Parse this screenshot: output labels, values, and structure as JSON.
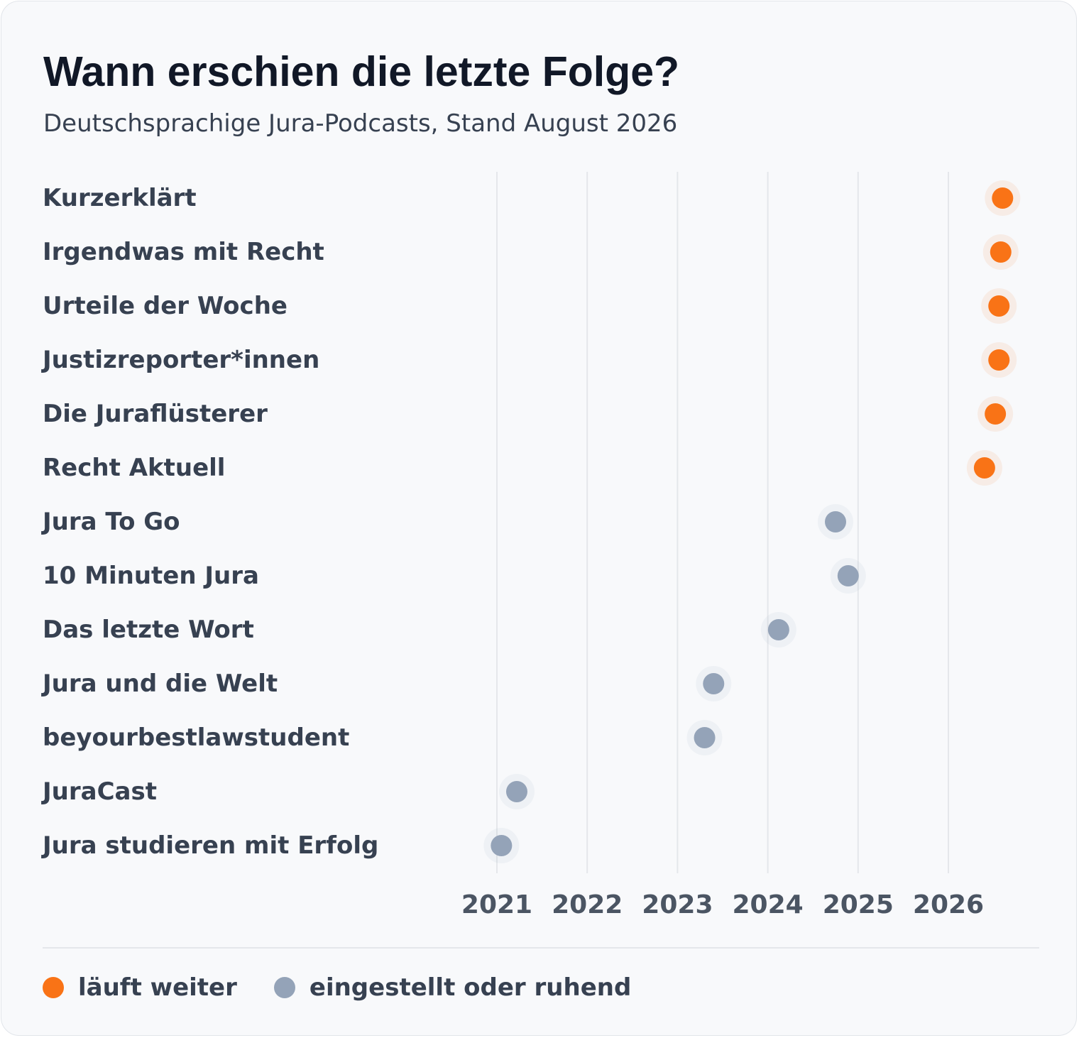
{
  "header": {
    "title": "Wann erschien die letzte Folge?",
    "subtitle": "Deutschsprachige Jura-Podcasts, Stand August 2026"
  },
  "colors": {
    "active": "#f97316",
    "inactive": "#94a3b8",
    "gridline": "#e5e7eb",
    "background": "#f8f9fb"
  },
  "chart_data": {
    "type": "scatter",
    "title": "Wann erschien die letzte Folge?",
    "subtitle": "Deutschsprachige Jura-Podcasts, Stand August 2026",
    "xlabel": "",
    "ylabel": "",
    "xlim": [
      2021.0,
      2026.0
    ],
    "x_ticks": [
      "2021",
      "2022",
      "2023",
      "2024",
      "2025",
      "2026"
    ],
    "grid": true,
    "legend_position": "bottom-left",
    "series": [
      {
        "name": "läuft weiter",
        "color": "#f97316"
      },
      {
        "name": "eingestellt oder ruhend",
        "color": "#94a3b8"
      }
    ],
    "points": [
      {
        "label": "Kurzerklärt",
        "x": 2026.6,
        "series": "läuft weiter"
      },
      {
        "label": "Irgendwas mit Recht",
        "x": 2026.58,
        "series": "läuft weiter"
      },
      {
        "label": "Urteile der Woche",
        "x": 2026.56,
        "series": "läuft weiter"
      },
      {
        "label": "Justizreporter*innen",
        "x": 2026.56,
        "series": "läuft weiter"
      },
      {
        "label": "Die Juraflüsterer",
        "x": 2026.52,
        "series": "läuft weiter"
      },
      {
        "label": "Recht Aktuell",
        "x": 2026.4,
        "series": "läuft weiter"
      },
      {
        "label": "Jura To Go",
        "x": 2024.75,
        "series": "eingestellt oder ruhend"
      },
      {
        "label": "10 Minuten Jura",
        "x": 2024.89,
        "series": "eingestellt oder ruhend"
      },
      {
        "label": "Das letzte Wort",
        "x": 2024.12,
        "series": "eingestellt oder ruhend"
      },
      {
        "label": "Jura und die Welt",
        "x": 2023.4,
        "series": "eingestellt oder ruhend"
      },
      {
        "label": "beyourbestlawstudent",
        "x": 2023.3,
        "series": "eingestellt oder ruhend"
      },
      {
        "label": "JuraCast",
        "x": 2021.22,
        "series": "eingestellt oder ruhend"
      },
      {
        "label": "Jura studieren mit Erfolg",
        "x": 2021.05,
        "series": "eingestellt oder ruhend"
      }
    ]
  },
  "legend": [
    {
      "label": "läuft weiter",
      "color": "#f97316"
    },
    {
      "label": "eingestellt oder ruhend",
      "color": "#94a3b8"
    }
  ]
}
